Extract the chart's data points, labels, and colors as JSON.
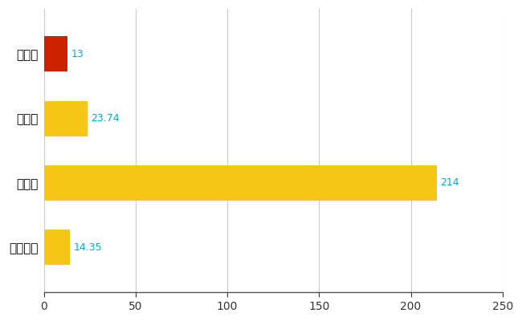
{
  "categories": [
    "妙高市",
    "県平均",
    "県最大",
    "全国平均"
  ],
  "values": [
    13,
    23.74,
    214,
    14.35
  ],
  "bar_colors": [
    "#cc2200",
    "#f5c518",
    "#f5c518",
    "#f5c518"
  ],
  "value_labels": [
    "13",
    "23.74",
    "214",
    "14.35"
  ],
  "xlim": [
    0,
    250
  ],
  "xticks": [
    0,
    50,
    100,
    150,
    200,
    250
  ],
  "background_color": "#ffffff",
  "grid_color": "#c8c8c8",
  "label_color": "#00aacc",
  "bar_height": 0.55,
  "figsize": [
    6.5,
    4.0
  ],
  "dpi": 100
}
